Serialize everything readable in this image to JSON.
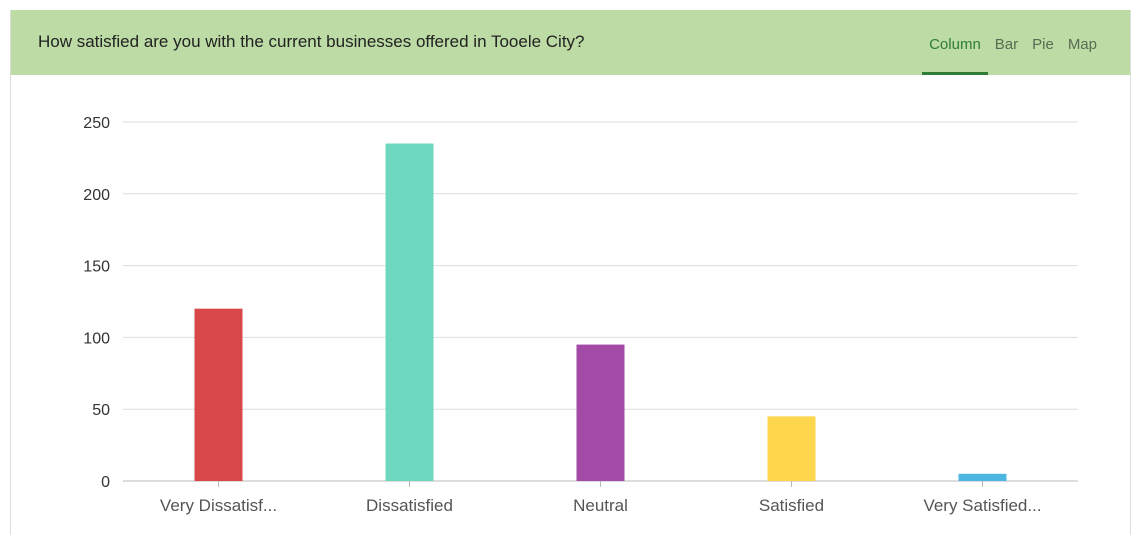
{
  "header": {
    "question": "How satisfied are you with the current businesses offered in Tooele City?",
    "tabs": [
      {
        "label": "Column",
        "active": true
      },
      {
        "label": "Bar",
        "active": false
      },
      {
        "label": "Pie",
        "active": false
      },
      {
        "label": "Map",
        "active": false
      }
    ],
    "accent_color": "#2f7d35",
    "background_color": "#bcdba5"
  },
  "chart_data": {
    "type": "bar",
    "categories": [
      "Very Dissatisf...",
      "Dissatisfied",
      "Neutral",
      "Satisfied",
      "Very Satisfied..."
    ],
    "values": [
      120,
      235,
      95,
      45,
      5
    ],
    "colors": [
      "#d8474a",
      "#6dd8be",
      "#a24aa6",
      "#fdd64e",
      "#4cb6e0"
    ],
    "yticks": [
      0,
      50,
      100,
      150,
      200,
      250
    ],
    "ylim": [
      0,
      250
    ],
    "grid": true,
    "legend": "none"
  }
}
